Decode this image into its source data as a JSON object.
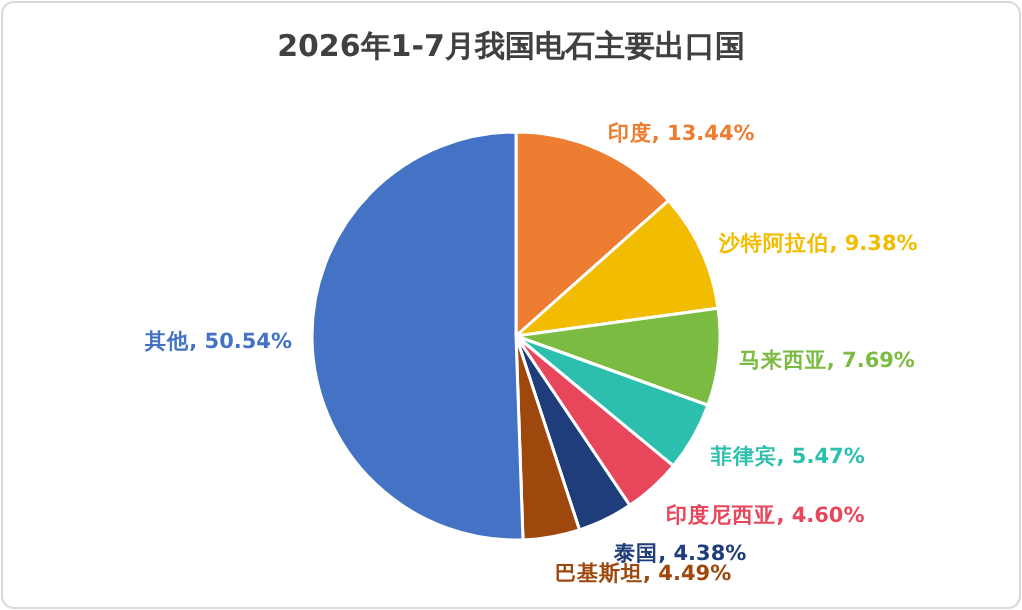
{
  "chart_data": {
    "type": "pie",
    "title": "2026年1-7月我国电石主要出口国",
    "categories": [
      "印度",
      "沙特阿拉伯",
      "马来西亚",
      "菲律宾",
      "印度尼西亚",
      "泰国",
      "巴基斯坦",
      "其他"
    ],
    "values": [
      13.44,
      9.38,
      7.69,
      5.47,
      4.6,
      4.38,
      4.49,
      50.54
    ],
    "value_labels": [
      ", 13.44%",
      ", 9.38%",
      ", 7.69%",
      ", 5.47%",
      ", 4.60%",
      ", 4.38%",
      ", 4.49%",
      ", 50.54%"
    ],
    "colors": [
      "#ed7d31",
      "#f2bc00",
      "#7cbb42",
      "#2dbfae",
      "#e8475b",
      "#1f3d7a",
      "#9e480e",
      "#4472c4"
    ]
  }
}
